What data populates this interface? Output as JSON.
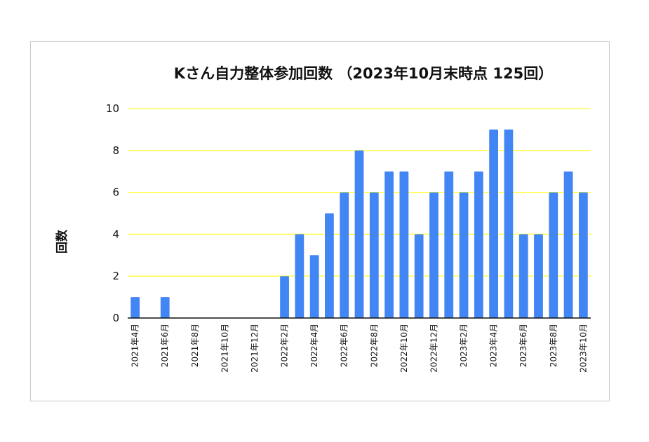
{
  "chart_data": {
    "type": "bar",
    "title": "Kさん自力整体参加回数 （2023年10月末時点 125回）",
    "xlabel": "",
    "ylabel": "回数",
    "ylim": [
      0,
      10
    ],
    "yticks": [
      0,
      2,
      4,
      6,
      8,
      10
    ],
    "grid": true,
    "legend": "none",
    "categories": [
      "2021年4月",
      "2021年5月",
      "2021年6月",
      "2021年7月",
      "2021年8月",
      "2021年9月",
      "2021年10月",
      "2021年11月",
      "2021年12月",
      "2022年1月",
      "2022年2月",
      "2022年3月",
      "2022年4月",
      "2022年5月",
      "2022年6月",
      "2022年7月",
      "2022年8月",
      "2022年9月",
      "2022年10月",
      "2022年11月",
      "2022年12月",
      "2023年1月",
      "2023年2月",
      "2023年3月",
      "2023年4月",
      "2023年5月",
      "2023年6月",
      "2023年7月",
      "2023年8月",
      "2023年9月",
      "2023年10月"
    ],
    "tick_labels": [
      "2021年4月",
      "",
      "2021年6月",
      "",
      "2021年8月",
      "",
      "2021年10月",
      "",
      "2021年12月",
      "",
      "2022年2月",
      "",
      "2022年4月",
      "",
      "2022年6月",
      "",
      "2022年8月",
      "",
      "2022年10月",
      "",
      "2022年12月",
      "",
      "2023年2月",
      "",
      "2023年4月",
      "",
      "2023年6月",
      "",
      "2023年8月",
      "",
      "2023年10月"
    ],
    "values": [
      1,
      0,
      1,
      0,
      0,
      0,
      0,
      0,
      0,
      0,
      2,
      4,
      3,
      5,
      6,
      8,
      6,
      7,
      7,
      4,
      6,
      7,
      6,
      7,
      9,
      9,
      4,
      4,
      6,
      7,
      6
    ],
    "colors": {
      "bar": "#4285f4",
      "grid": "#ffff33",
      "axis": "#111111"
    }
  }
}
